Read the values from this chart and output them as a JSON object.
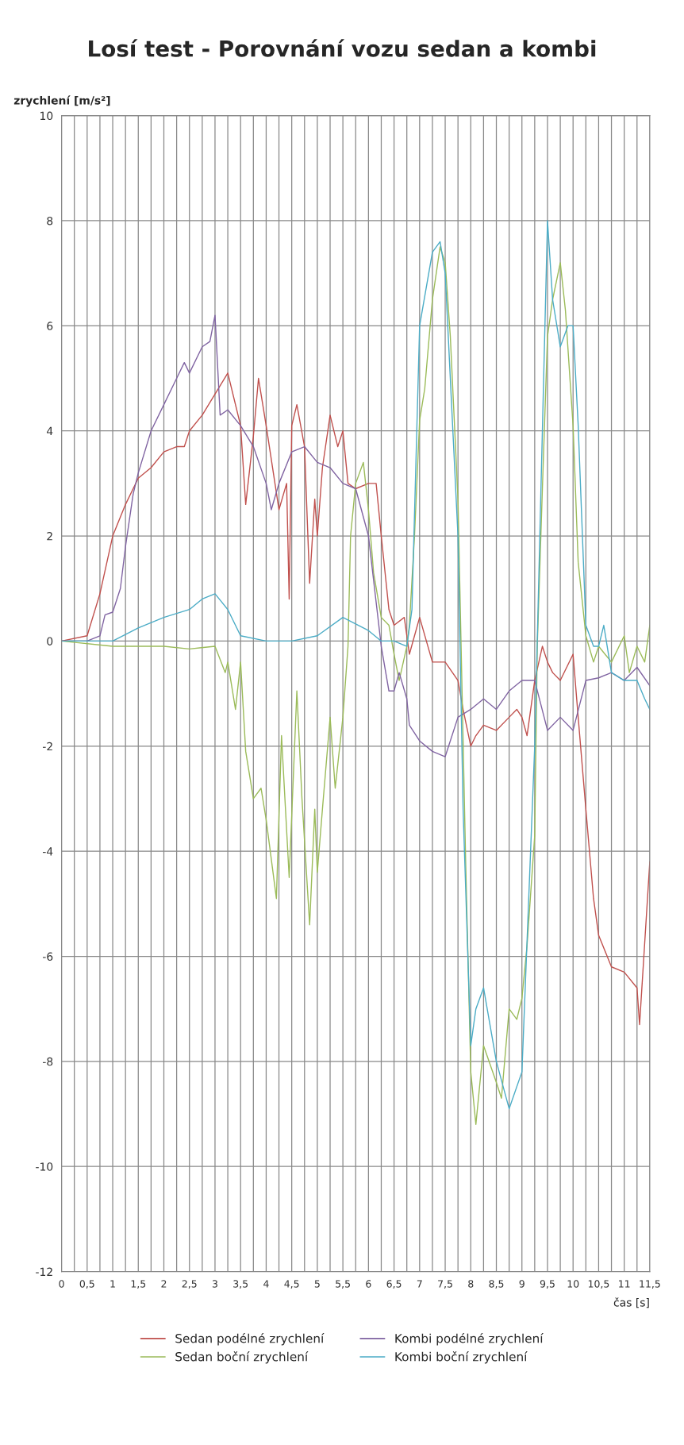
{
  "chart_data": {
    "type": "line",
    "title": "Losí test - Porovnání vozu sedan a kombi",
    "xlabel": "čas [s]",
    "ylabel": "zrychlení [m/s²]",
    "xlim": [
      0,
      11.5
    ],
    "ylim": [
      -12,
      10
    ],
    "xticks": [
      0,
      {
        "value": 0.25,
        "label": null
      },
      {
        "value": 0.5,
        "label": "0,5"
      },
      {
        "value": 0.75,
        "label": null
      },
      1,
      {
        "value": 1.25,
        "label": null
      },
      {
        "value": 1.5,
        "label": "1,5"
      },
      {
        "value": 1.75,
        "label": null
      },
      2,
      {
        "value": 2.25,
        "label": null
      },
      {
        "value": 2.5,
        "label": "2,5"
      },
      {
        "value": 2.75,
        "label": null
      },
      3,
      {
        "value": 3.25,
        "label": null
      },
      {
        "value": 3.5,
        "label": "3,5"
      },
      {
        "value": 3.75,
        "label": null
      },
      4,
      {
        "value": 4.25,
        "label": null
      },
      {
        "value": 4.5,
        "label": "4,5"
      },
      {
        "value": 4.75,
        "label": null
      },
      5,
      {
        "value": 5.25,
        "label": null
      },
      {
        "value": 5.5,
        "label": "5,5"
      },
      {
        "value": 5.75,
        "label": null
      },
      6,
      {
        "value": 6.25,
        "label": null
      },
      {
        "value": 6.5,
        "label": "6,5"
      },
      {
        "value": 6.75,
        "label": null
      },
      7,
      {
        "value": 7.25,
        "label": null
      },
      {
        "value": 7.5,
        "label": "7,5"
      },
      {
        "value": 7.75,
        "label": null
      },
      8,
      {
        "value": 8.25,
        "label": null
      },
      {
        "value": 8.5,
        "label": "8,5"
      },
      {
        "value": 8.75,
        "label": null
      },
      9,
      {
        "value": 9.25,
        "label": null
      },
      {
        "value": 9.5,
        "label": "9,5"
      },
      {
        "value": 9.75,
        "label": null
      },
      10,
      {
        "value": 10.25,
        "label": null
      },
      {
        "value": 10.5,
        "label": "10,5"
      },
      {
        "value": 10.75,
        "label": null
      },
      11,
      {
        "value": 11.25,
        "label": null
      },
      {
        "value": 11.5,
        "label": "11,5"
      }
    ],
    "yticks": [
      -12,
      -10,
      -8,
      -6,
      -4,
      -2,
      0,
      2,
      4,
      6,
      8,
      10
    ],
    "grid": true,
    "legend": "bottom",
    "series": [
      {
        "name": "Sedan podélné zrychlení",
        "color": "#c0504d",
        "x": [
          0,
          0.5,
          0.75,
          1.0,
          1.25,
          1.5,
          1.75,
          2.0,
          2.25,
          2.4,
          2.5,
          2.75,
          3.0,
          3.25,
          3.5,
          3.6,
          3.75,
          3.85,
          4.0,
          4.25,
          4.4,
          4.45,
          4.5,
          4.6,
          4.75,
          4.85,
          4.95,
          5.0,
          5.1,
          5.25,
          5.4,
          5.5,
          5.6,
          5.75,
          6.0,
          6.15,
          6.25,
          6.4,
          6.5,
          6.7,
          6.8,
          7.0,
          7.25,
          7.5,
          7.75,
          7.85,
          8.0,
          8.1,
          8.25,
          8.5,
          8.75,
          8.9,
          9.0,
          9.1,
          9.25,
          9.4,
          9.5,
          9.6,
          9.75,
          10.0,
          10.1,
          10.25,
          10.4,
          10.5,
          10.75,
          11.0,
          11.25,
          11.3,
          11.4,
          11.5
        ],
        "values": [
          0,
          0.1,
          0.9,
          2.0,
          2.6,
          3.1,
          3.3,
          3.6,
          3.7,
          3.7,
          4.0,
          4.3,
          4.7,
          5.1,
          4.1,
          2.6,
          3.9,
          5.0,
          4.1,
          2.5,
          3.0,
          0.8,
          4.1,
          4.5,
          3.7,
          1.1,
          2.7,
          2.0,
          3.3,
          4.3,
          3.7,
          4.0,
          3.0,
          2.9,
          3.0,
          3.0,
          2.0,
          0.6,
          0.3,
          0.45,
          -0.25,
          0.45,
          -0.4,
          -0.4,
          -0.75,
          -1.3,
          -2.0,
          -1.8,
          -1.6,
          -1.7,
          -1.45,
          -1.3,
          -1.45,
          -1.8,
          -0.75,
          -0.1,
          -0.4,
          -0.6,
          -0.75,
          -0.25,
          -1.45,
          -3.2,
          -4.9,
          -5.6,
          -6.2,
          -6.3,
          -6.6,
          -7.3,
          -5.75,
          -4.2
        ]
      },
      {
        "name": "Sedan boční zrychlení",
        "color": "#9bbb59",
        "x": [
          0,
          1.0,
          2.0,
          2.5,
          3.0,
          3.2,
          3.25,
          3.4,
          3.5,
          3.6,
          3.75,
          3.9,
          4.0,
          4.2,
          4.3,
          4.45,
          4.6,
          4.7,
          4.85,
          4.95,
          5.0,
          5.1,
          5.25,
          5.35,
          5.5,
          5.6,
          5.65,
          5.75,
          5.9,
          6.0,
          6.1,
          6.25,
          6.4,
          6.5,
          6.6,
          6.75,
          6.8,
          6.9,
          7.0,
          7.1,
          7.25,
          7.4,
          7.5,
          7.6,
          7.75,
          7.9,
          8.0,
          8.1,
          8.25,
          8.5,
          8.6,
          8.75,
          8.9,
          9.0,
          9.1,
          9.25,
          9.3,
          9.4,
          9.5,
          9.6,
          9.75,
          9.85,
          10.0,
          10.1,
          10.25,
          10.4,
          10.5,
          10.75,
          11.0,
          11.1,
          11.25,
          11.4,
          11.5
        ],
        "values": [
          0,
          -0.1,
          -0.1,
          -0.15,
          -0.1,
          -0.6,
          -0.4,
          -1.3,
          -0.4,
          -2.1,
          -3.0,
          -2.8,
          -3.4,
          -4.9,
          -1.8,
          -4.5,
          -0.95,
          -3.0,
          -5.4,
          -3.2,
          -4.4,
          -3.2,
          -1.45,
          -2.8,
          -1.45,
          -0.1,
          2.0,
          3.0,
          3.4,
          2.5,
          1.3,
          0.45,
          0.3,
          -0.25,
          -0.75,
          -0.1,
          0.3,
          2.0,
          4.2,
          4.8,
          6.5,
          7.5,
          7.2,
          5.8,
          2.7,
          -4.2,
          -8.2,
          -9.2,
          -7.7,
          -8.4,
          -8.7,
          -7.0,
          -7.2,
          -6.8,
          -5.8,
          -3.7,
          -0.1,
          2.9,
          5.8,
          6.5,
          7.2,
          6.3,
          4.1,
          1.5,
          0.1,
          -0.4,
          -0.1,
          -0.4,
          0.1,
          -0.6,
          -0.1,
          -0.4,
          0.3
        ]
      },
      {
        "name": "Kombi podélné zrychlení",
        "color": "#8064a2",
        "x": [
          0,
          0.5,
          0.75,
          0.85,
          1.0,
          1.15,
          1.25,
          1.4,
          1.5,
          1.75,
          2.0,
          2.25,
          2.4,
          2.5,
          2.75,
          2.9,
          3.0,
          3.1,
          3.25,
          3.5,
          3.75,
          4.0,
          4.1,
          4.25,
          4.5,
          4.75,
          5.0,
          5.25,
          5.5,
          5.75,
          6.0,
          6.25,
          6.4,
          6.5,
          6.6,
          6.75,
          6.8,
          7.0,
          7.25,
          7.5,
          7.75,
          8.0,
          8.25,
          8.5,
          8.75,
          9.0,
          9.25,
          9.5,
          9.75,
          10.0,
          10.25,
          10.5,
          10.75,
          11.0,
          11.25,
          11.5
        ],
        "values": [
          0,
          0,
          0.1,
          0.5,
          0.55,
          1.0,
          1.8,
          2.8,
          3.2,
          4.0,
          4.5,
          5.0,
          5.3,
          5.1,
          5.6,
          5.7,
          6.2,
          4.3,
          4.4,
          4.1,
          3.7,
          3.0,
          2.5,
          3.0,
          3.6,
          3.7,
          3.4,
          3.3,
          3.0,
          2.9,
          2.0,
          -0.1,
          -0.95,
          -0.95,
          -0.6,
          -1.1,
          -1.6,
          -1.9,
          -2.1,
          -2.2,
          -1.45,
          -1.3,
          -1.1,
          -1.3,
          -0.95,
          -0.75,
          -0.75,
          -1.7,
          -1.45,
          -1.7,
          -0.75,
          -0.7,
          -0.6,
          -0.75,
          -0.5,
          -0.85
        ]
      },
      {
        "name": "Kombi boční zrychlení",
        "color": "#4bacc6",
        "x": [
          0,
          1.0,
          1.5,
          2.0,
          2.5,
          2.75,
          3.0,
          3.25,
          3.5,
          4.0,
          4.5,
          5.0,
          5.5,
          6.0,
          6.25,
          6.5,
          6.75,
          6.85,
          7.0,
          7.25,
          7.4,
          7.5,
          7.75,
          7.85,
          8.0,
          8.1,
          8.25,
          8.5,
          8.75,
          9.0,
          9.25,
          9.35,
          9.5,
          9.6,
          9.75,
          9.9,
          10.0,
          10.1,
          10.25,
          10.4,
          10.5,
          10.6,
          10.75,
          11.0,
          11.25,
          11.4,
          11.5
        ],
        "values": [
          0,
          0,
          0.25,
          0.45,
          0.6,
          0.8,
          0.9,
          0.6,
          0.1,
          0,
          0,
          0.1,
          0.45,
          0.2,
          0,
          0,
          -0.1,
          0.6,
          6.0,
          7.4,
          7.6,
          7.0,
          2.0,
          -3.2,
          -7.7,
          -7.0,
          -6.6,
          -8.0,
          -8.9,
          -8.2,
          -2.0,
          2.0,
          8.0,
          6.5,
          5.6,
          6.0,
          6.0,
          4.1,
          0.3,
          -0.1,
          -0.1,
          0.3,
          -0.6,
          -0.75,
          -0.75,
          -1.1,
          -1.3
        ]
      }
    ]
  }
}
